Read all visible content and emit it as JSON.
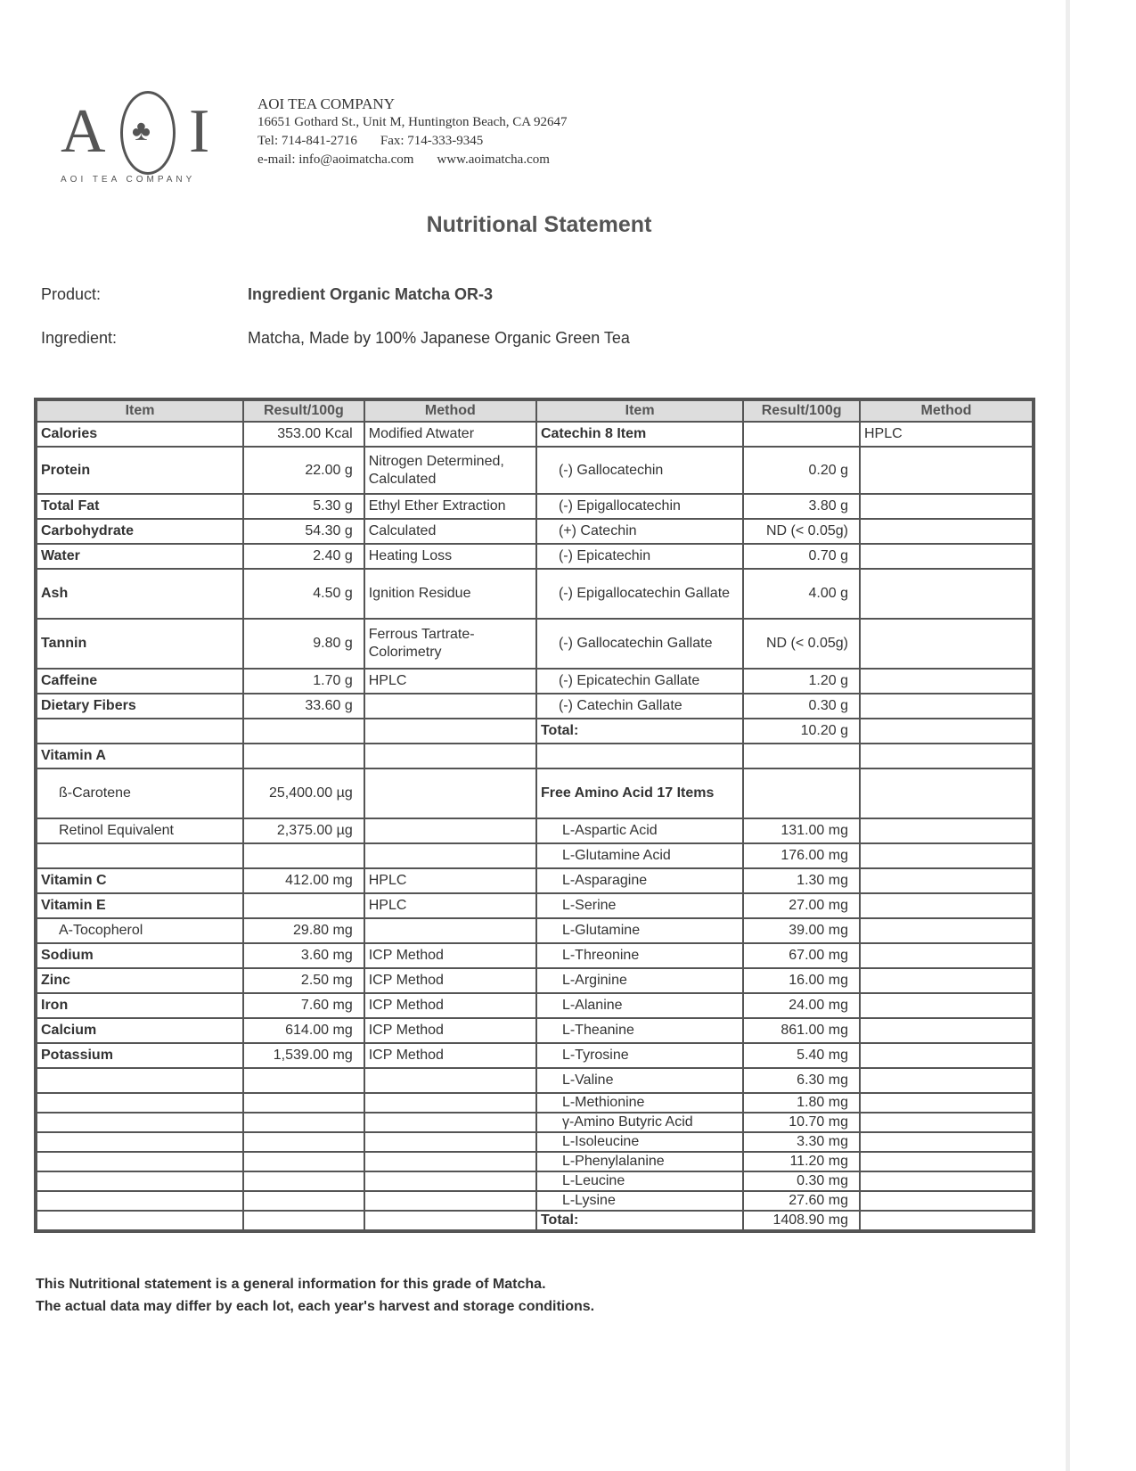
{
  "company": {
    "logo_text": "AOI",
    "logo_sub": "AOI TEA COMPANY",
    "name": "AOI TEA COMPANY",
    "address": "16651 Gothard St., Unit M, Huntington Beach, CA 92647",
    "tel": "Tel: 714-841-2716",
    "fax": "Fax: 714-333-9345",
    "email": "e-mail:  info@aoimatcha.com",
    "web": "www.aoimatcha.com"
  },
  "title": "Nutritional Statement",
  "product": {
    "label": "Product:",
    "value": "Ingredient Organic Matcha OR-3"
  },
  "ingredient": {
    "label": "Ingredient:",
    "value": "Matcha, Made by 100% Japanese Organic Green Tea"
  },
  "table": {
    "headers": [
      "Item",
      "Result/100g",
      "Method",
      "Item",
      "Result/100g",
      "Method"
    ],
    "rows": [
      {
        "l": [
          "Calories",
          "353.00 Kcal",
          "Modified Atwater"
        ],
        "lk": "heading",
        "r": [
          "Catechin 8 Item",
          "",
          "HPLC"
        ],
        "rk": "heading"
      },
      {
        "l": [
          "Protein",
          "22.00 g",
          "Nitrogen Determined, Calculated"
        ],
        "lk": "heading",
        "r": [
          "(-)  Gallocatechin",
          "0.20 g",
          ""
        ],
        "rk": "sub"
      },
      {
        "l": [
          "Total Fat",
          "5.30 g",
          "Ethyl Ether Extraction"
        ],
        "lk": "heading",
        "r": [
          "(-)  Epigallocatechin",
          "3.80 g",
          ""
        ],
        "rk": "sub"
      },
      {
        "l": [
          "Carbohydrate",
          "54.30 g",
          "Calculated"
        ],
        "lk": "heading",
        "r": [
          "(+) Catechin",
          "ND (< 0.05g)",
          ""
        ],
        "rk": "sub"
      },
      {
        "l": [
          "Water",
          "2.40 g",
          "Heating Loss"
        ],
        "lk": "heading",
        "r": [
          "(-)  Epicatechin",
          "0.70 g",
          ""
        ],
        "rk": "sub"
      },
      {
        "l": [
          "Ash",
          "4.50 g",
          "Ignition Residue"
        ],
        "lk": "heading",
        "r": [
          "(-)  Epigallocatechin Gallate",
          "4.00 g",
          ""
        ],
        "rk": "sub"
      },
      {
        "l": [
          "Tannin",
          "9.80 g",
          "Ferrous Tartrate-Colorimetry"
        ],
        "lk": "heading",
        "r": [
          "(-)  Gallocatechin Gallate",
          "ND (< 0.05g)",
          ""
        ],
        "rk": "sub"
      },
      {
        "l": [
          "Caffeine",
          "1.70 g",
          "HPLC"
        ],
        "lk": "heading",
        "r": [
          "(-)  Epicatechin Gallate",
          "1.20 g",
          ""
        ],
        "rk": "sub"
      },
      {
        "l": [
          "Dietary Fibers",
          "33.60 g",
          ""
        ],
        "lk": "heading",
        "r": [
          "(-)  Catechin Gallate",
          "0.30 g",
          ""
        ],
        "rk": "sub"
      },
      {
        "l": [
          "",
          "",
          ""
        ],
        "lk": "",
        "r": [
          "Total:",
          "10.20 g",
          ""
        ],
        "rk": "heading"
      },
      {
        "l": [
          "Vitamin A",
          "",
          ""
        ],
        "lk": "heading",
        "r": [
          "",
          "",
          ""
        ],
        "rk": ""
      },
      {
        "l": [
          "ß-Carotene",
          "25,400.00 µg",
          ""
        ],
        "lk": "sub",
        "r": [
          "Free Amino Acid 17 Items",
          "",
          ""
        ],
        "rk": "heading"
      },
      {
        "l": [
          "Retinol Equivalent",
          "2,375.00 µg",
          ""
        ],
        "lk": "sub",
        "r": [
          "L-Aspartic Acid",
          "131.00 mg",
          ""
        ],
        "rk": "sub2"
      },
      {
        "l": [
          "",
          "",
          ""
        ],
        "lk": "",
        "r": [
          "L-Glutamine Acid",
          "176.00 mg",
          ""
        ],
        "rk": "sub2"
      },
      {
        "l": [
          "Vitamin C",
          "412.00 mg",
          "HPLC"
        ],
        "lk": "heading",
        "r": [
          "L-Asparagine",
          "1.30 mg",
          ""
        ],
        "rk": "sub2"
      },
      {
        "l": [
          "Vitamin E",
          "",
          "HPLC"
        ],
        "lk": "heading",
        "r": [
          "L-Serine",
          "27.00 mg",
          ""
        ],
        "rk": "sub2"
      },
      {
        "l": [
          "A-Tocopherol",
          "29.80 mg",
          ""
        ],
        "lk": "sub",
        "r": [
          "L-Glutamine",
          "39.00 mg",
          ""
        ],
        "rk": "sub2"
      },
      {
        "l": [
          "Sodium",
          "3.60 mg",
          "ICP Method"
        ],
        "lk": "heading",
        "r": [
          "L-Threonine",
          "67.00 mg",
          ""
        ],
        "rk": "sub2"
      },
      {
        "l": [
          "Zinc",
          "2.50 mg",
          "ICP Method"
        ],
        "lk": "heading",
        "r": [
          "L-Arginine",
          "16.00 mg",
          ""
        ],
        "rk": "sub2"
      },
      {
        "l": [
          "Iron",
          "7.60 mg",
          "ICP Method"
        ],
        "lk": "heading",
        "r": [
          "L-Alanine",
          "24.00 mg",
          ""
        ],
        "rk": "sub2"
      },
      {
        "l": [
          "Calcium",
          "614.00 mg",
          "ICP Method"
        ],
        "lk": "heading",
        "r": [
          "L-Theanine",
          "861.00 mg",
          ""
        ],
        "rk": "sub2"
      },
      {
        "l": [
          "Potassium",
          "1,539.00 mg",
          "ICP Method"
        ],
        "lk": "heading",
        "r": [
          "L-Tyrosine",
          "5.40 mg",
          ""
        ],
        "rk": "sub2"
      },
      {
        "l": [
          "",
          "",
          ""
        ],
        "lk": "",
        "r": [
          "L-Valine",
          "6.30 mg",
          ""
        ],
        "rk": "sub2"
      },
      {
        "l": [
          "",
          "",
          ""
        ],
        "lk": "",
        "r": [
          "L-Methionine",
          "1.80 mg",
          ""
        ],
        "rk": "sub2"
      },
      {
        "l": [
          "",
          "",
          ""
        ],
        "lk": "",
        "r": [
          "γ-Amino Butyric Acid",
          "10.70 mg",
          ""
        ],
        "rk": "sub2"
      },
      {
        "l": [
          "",
          "",
          ""
        ],
        "lk": "",
        "r": [
          "L-Isoleucine",
          "3.30 mg",
          ""
        ],
        "rk": "sub2"
      },
      {
        "l": [
          "",
          "",
          ""
        ],
        "lk": "",
        "r": [
          "L-Phenylalanine",
          "11.20 mg",
          ""
        ],
        "rk": "sub2"
      },
      {
        "l": [
          "",
          "",
          ""
        ],
        "lk": "",
        "r": [
          "L-Leucine",
          "0.30 mg",
          ""
        ],
        "rk": "sub2"
      },
      {
        "l": [
          "",
          "",
          ""
        ],
        "lk": "",
        "r": [
          "L-Lysine",
          "27.60 mg",
          ""
        ],
        "rk": "sub2"
      },
      {
        "l": [
          "",
          "",
          ""
        ],
        "lk": "",
        "r": [
          "Total:",
          "1408.90 mg",
          ""
        ],
        "rk": "heading"
      }
    ]
  },
  "footer": [
    "This Nutritional statement is a general information for this grade of Matcha.",
    "The actual data may differ by each lot, each year's harvest and storage conditions."
  ]
}
